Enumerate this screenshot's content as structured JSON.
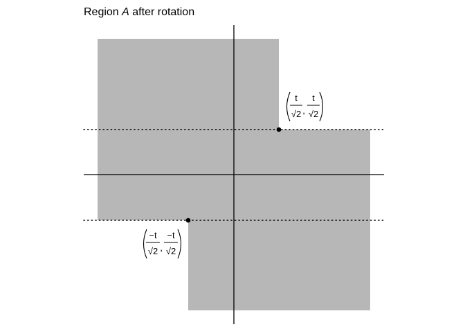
{
  "title": {
    "prefix": "Region ",
    "variable": "A",
    "suffix": " after rotation"
  },
  "colors": {
    "region_fill": "#b7b7b7",
    "axis": "#000000",
    "guide": "#000000",
    "point": "#000000"
  },
  "points": [
    {
      "id": "upper-right-corner",
      "x_numerator": "t",
      "x_denominator": "√2",
      "y_numerator": "t",
      "y_denominator": "√2",
      "separator": ","
    },
    {
      "id": "lower-left-corner",
      "x_numerator": "−t",
      "x_denominator": "√2",
      "y_numerator": "−t",
      "y_denominator": "√2",
      "separator": ","
    }
  ]
}
